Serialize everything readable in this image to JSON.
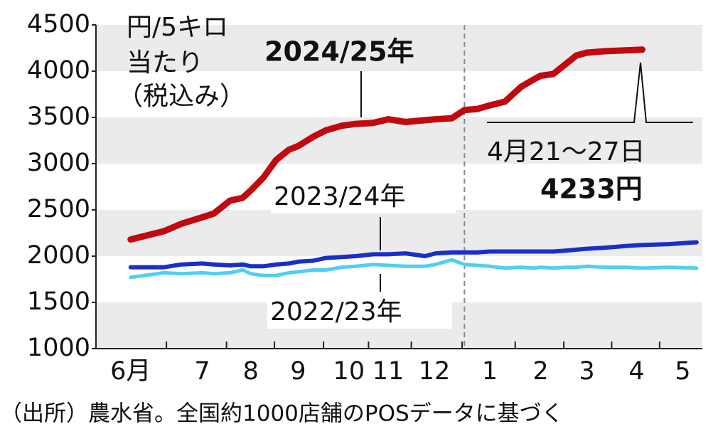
{
  "chart_data": {
    "type": "line",
    "unit_label": [
      "円/5キロ",
      "当たり",
      "（税込み）"
    ],
    "x": [
      0,
      2.9,
      4.4,
      6.2,
      7.2,
      8.6,
      9.7,
      10.4,
      11.5,
      12.6,
      13.7,
      14.5,
      15.8,
      16.9,
      18.3,
      19.5,
      21,
      22.3,
      23.8,
      25.5,
      26.4,
      27.8,
      28.9,
      30,
      31.1,
      32.4,
      33.8,
      34.9,
      35.5,
      36.6,
      37.7,
      38.6,
      39.5,
      41,
      42.9,
      44.3,
      46.6,
      49
    ],
    "series": [
      {
        "name": "2024/25年",
        "color": "#c00a10",
        "width": 9,
        "values": [
          2180,
          2270,
          2350,
          2420,
          2460,
          2600,
          2630,
          2710,
          2850,
          3040,
          3150,
          3190,
          3290,
          3360,
          3410,
          3430,
          3440,
          3480,
          3450,
          3470,
          3480,
          3490,
          3580,
          3590,
          3630,
          3670,
          3830,
          3910,
          3950,
          3970,
          4080,
          4170,
          4200,
          4215,
          4225,
          4233,
          null,
          null
        ]
      },
      {
        "name": "2023/24年",
        "color": "#1a2fc8",
        "width": 6,
        "values": [
          1880,
          1880,
          1910,
          1920,
          1910,
          1900,
          1910,
          1890,
          1890,
          1910,
          1920,
          1940,
          1950,
          1980,
          1990,
          2000,
          2020,
          2020,
          2030,
          2000,
          2030,
          2040,
          2040,
          2040,
          2050,
          2050,
          2050,
          2050,
          2050,
          2050,
          2060,
          2070,
          2080,
          2090,
          2110,
          2120,
          2130,
          2150
        ]
      },
      {
        "name": "2022/23年",
        "color": "#4fd0f0",
        "width": 5,
        "values": [
          1770,
          1820,
          1810,
          1820,
          1810,
          1820,
          1850,
          1810,
          1790,
          1790,
          1820,
          1830,
          1850,
          1850,
          1880,
          1890,
          1910,
          1900,
          1890,
          1890,
          1910,
          1960,
          1910,
          1900,
          1890,
          1870,
          1880,
          1870,
          1880,
          1870,
          1880,
          1880,
          1890,
          1880,
          1880,
          1870,
          1880,
          1870
        ]
      }
    ],
    "xlim": [
      -3,
      49.5
    ],
    "xticks": [
      {
        "value": 0,
        "label": "6月"
      },
      {
        "value": 6.2,
        "label": "7"
      },
      {
        "value": 10.4,
        "label": "8"
      },
      {
        "value": 14.5,
        "label": "9"
      },
      {
        "value": 18.9,
        "label": "10"
      },
      {
        "value": 22.3,
        "label": "11"
      },
      {
        "value": 26.3,
        "label": "12"
      },
      {
        "value": 31.1,
        "label": "1"
      },
      {
        "value": 35.5,
        "label": "2"
      },
      {
        "value": 39.5,
        "label": "3"
      },
      {
        "value": 43.8,
        "label": "4"
      },
      {
        "value": 47.8,
        "label": "5"
      }
    ],
    "ylim": [
      1000,
      4500
    ],
    "yticks": [
      1000,
      1500,
      2000,
      2500,
      3000,
      3500,
      4000,
      4500
    ],
    "bands": true,
    "reference_line": {
      "x": 28.9,
      "style": "dashed"
    },
    "callout": {
      "date": "4月21～27日",
      "value": "4233円"
    },
    "source": "（出所）農水省。全国約1000店舗のPOSデータに基づく"
  }
}
